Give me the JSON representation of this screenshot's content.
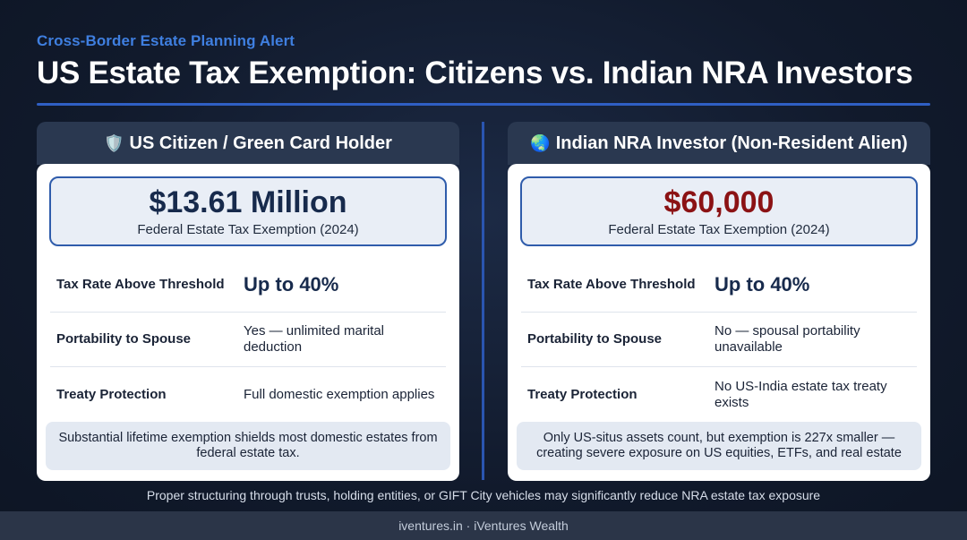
{
  "header": {
    "eyebrow": "Cross-Border Estate Planning Alert",
    "title": "US Estate Tax Exemption: Citizens vs. Indian NRA Investors"
  },
  "panels": [
    {
      "icon": "🛡️",
      "icon_name": "shield-icon",
      "title": "US Citizen / Green Card Holder",
      "hero_value": "$13.61 Million",
      "hero_label": "Federal Estate Tax Exemption (2024)",
      "rows": [
        {
          "label": "Tax Rate Above Threshold",
          "value": "Up to 40%"
        },
        {
          "label": "Portability to Spouse",
          "value": "Yes — unlimited marital deduction"
        },
        {
          "label": "Treaty Protection",
          "value": "Full domestic exemption applies"
        }
      ],
      "note": "Substantial lifetime exemption shields most domestic estates from federal estate tax."
    },
    {
      "icon": "🌏",
      "icon_name": "globe-icon",
      "title": "Indian NRA Investor (Non-Resident Alien)",
      "hero_value": "$60,000",
      "hero_label": "Federal Estate Tax Exemption (2024)",
      "rows": [
        {
          "label": "Tax Rate Above Threshold",
          "value": "Up to 40%"
        },
        {
          "label": "Portability to Spouse",
          "value": "No — spousal portability unavailable"
        },
        {
          "label": "Treaty Protection",
          "value": "No US-India estate tax treaty exists"
        }
      ],
      "note": "Only US-situs assets count, but exemption is 227x smaller — creating severe exposure on US equities, ETFs, and real estate"
    }
  ],
  "footnote": "Proper structuring through trusts, holding entities, or GIFT City vehicles may significantly reduce NRA estate tax exposure",
  "footer": "iventures.in · iVentures Wealth",
  "colors": {
    "accent": "#3f7fe0",
    "citizen_value": "#172a4c",
    "nra_value": "#8b1214"
  }
}
